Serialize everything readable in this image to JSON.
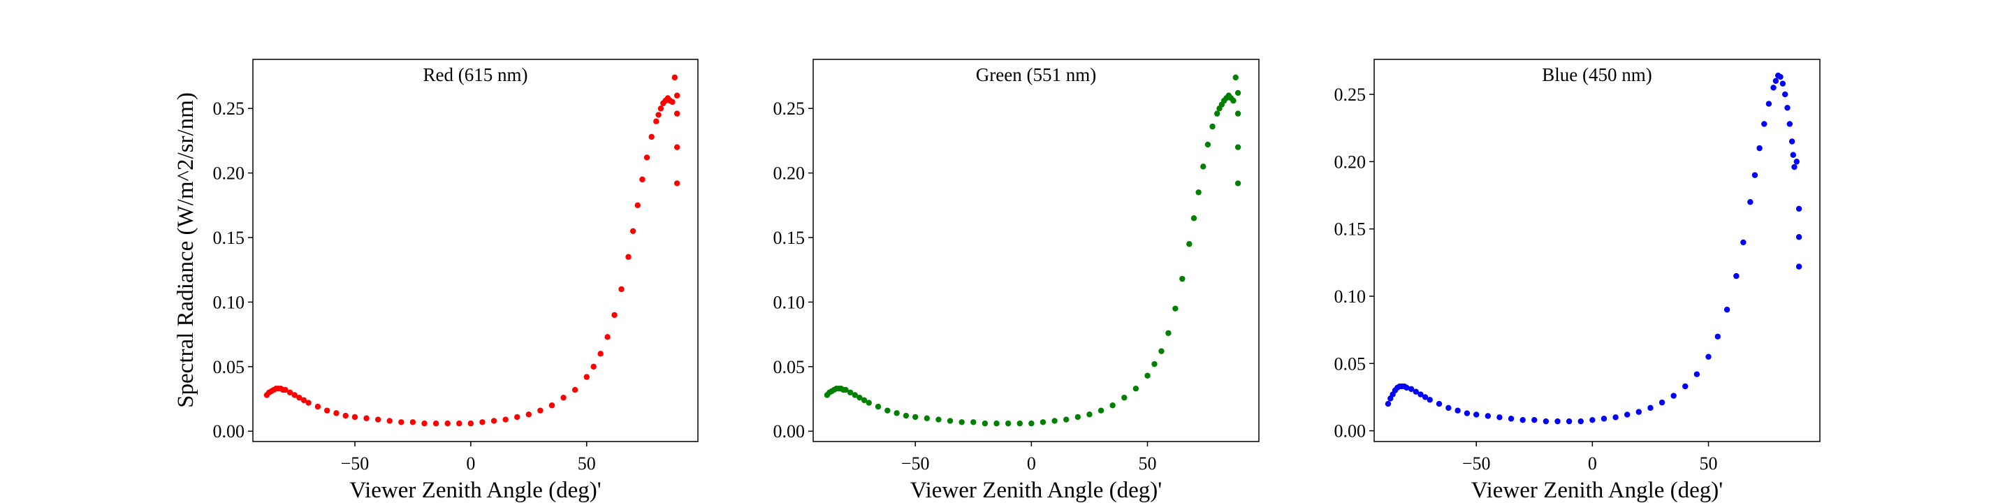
{
  "ylabel": "Spectral Radiance (W/m^2/sr/nm)",
  "chart_data": [
    {
      "type": "scatter",
      "title": "Red (615 nm)",
      "xlabel": "Viewer Zenith Angle (deg)'",
      "ylabel": "Spectral Radiance (W/m^2/sr/nm)",
      "color": "#ff0000",
      "xlim": [
        -94,
        98
      ],
      "ylim": [
        -0.008,
        0.288
      ],
      "xticks": [
        -50,
        0,
        50
      ],
      "xtick_labels": [
        "−50",
        "0",
        "50"
      ],
      "yticks": [
        0.0,
        0.05,
        0.1,
        0.15,
        0.2,
        0.25
      ],
      "ytick_labels": [
        "0.00",
        "0.05",
        "0.10",
        "0.15",
        "0.20",
        "0.25"
      ],
      "grid": false,
      "x": [
        -88,
        -87,
        -86,
        -85,
        -84,
        -83,
        -82,
        -81,
        -80,
        -78,
        -76,
        -74,
        -72,
        -70,
        -66,
        -62,
        -58,
        -54,
        -50,
        -45,
        -40,
        -35,
        -30,
        -25,
        -20,
        -15,
        -10,
        -5,
        0,
        5,
        10,
        15,
        20,
        25,
        30,
        35,
        40,
        45,
        50,
        53,
        56,
        59,
        62,
        65,
        68,
        70,
        72,
        74,
        76,
        78,
        80,
        81,
        82,
        83,
        84,
        85,
        86,
        87,
        88,
        89,
        89,
        89,
        89
      ],
      "y": [
        0.028,
        0.03,
        0.031,
        0.032,
        0.033,
        0.033,
        0.033,
        0.032,
        0.032,
        0.03,
        0.028,
        0.026,
        0.024,
        0.022,
        0.019,
        0.016,
        0.014,
        0.012,
        0.011,
        0.01,
        0.009,
        0.008,
        0.007,
        0.007,
        0.006,
        0.006,
        0.006,
        0.006,
        0.006,
        0.007,
        0.008,
        0.009,
        0.011,
        0.013,
        0.016,
        0.02,
        0.026,
        0.032,
        0.042,
        0.05,
        0.06,
        0.073,
        0.09,
        0.11,
        0.135,
        0.155,
        0.175,
        0.195,
        0.212,
        0.228,
        0.24,
        0.245,
        0.25,
        0.254,
        0.256,
        0.258,
        0.256,
        0.255,
        0.274,
        0.246,
        0.22,
        0.192,
        0.26
      ]
    },
    {
      "type": "scatter",
      "title": "Green (551 nm)",
      "xlabel": "Viewer Zenith Angle (deg)'",
      "ylabel": "",
      "color": "#008000",
      "xlim": [
        -94,
        98
      ],
      "ylim": [
        -0.008,
        0.288
      ],
      "xticks": [
        -50,
        0,
        50
      ],
      "xtick_labels": [
        "−50",
        "0",
        "50"
      ],
      "yticks": [
        0.0,
        0.05,
        0.1,
        0.15,
        0.2,
        0.25
      ],
      "ytick_labels": [
        "0.00",
        "0.05",
        "0.10",
        "0.15",
        "0.20",
        "0.25"
      ],
      "grid": false,
      "x": [
        -88,
        -87,
        -86,
        -85,
        -84,
        -83,
        -82,
        -81,
        -80,
        -78,
        -76,
        -74,
        -72,
        -70,
        -66,
        -62,
        -58,
        -54,
        -50,
        -45,
        -40,
        -35,
        -30,
        -25,
        -20,
        -15,
        -10,
        -5,
        0,
        5,
        10,
        15,
        20,
        25,
        30,
        35,
        40,
        45,
        50,
        53,
        56,
        59,
        62,
        65,
        68,
        70,
        72,
        74,
        76,
        78,
        80,
        81,
        82,
        83,
        84,
        85,
        86,
        87,
        88,
        89,
        89,
        89,
        89
      ],
      "y": [
        0.028,
        0.03,
        0.031,
        0.032,
        0.033,
        0.033,
        0.033,
        0.032,
        0.032,
        0.03,
        0.028,
        0.026,
        0.024,
        0.022,
        0.019,
        0.016,
        0.014,
        0.012,
        0.011,
        0.01,
        0.009,
        0.008,
        0.007,
        0.007,
        0.006,
        0.006,
        0.006,
        0.006,
        0.006,
        0.007,
        0.008,
        0.009,
        0.011,
        0.013,
        0.016,
        0.02,
        0.026,
        0.033,
        0.043,
        0.052,
        0.062,
        0.076,
        0.095,
        0.118,
        0.145,
        0.165,
        0.185,
        0.205,
        0.222,
        0.236,
        0.246,
        0.25,
        0.253,
        0.256,
        0.258,
        0.26,
        0.258,
        0.256,
        0.274,
        0.246,
        0.22,
        0.192,
        0.262
      ]
    },
    {
      "type": "scatter",
      "title": "Blue (450 nm)",
      "xlabel": "Viewer Zenith Angle (deg)'",
      "ylabel": "",
      "color": "#0000ff",
      "xlim": [
        -94,
        98
      ],
      "ylim": [
        -0.008,
        0.276
      ],
      "xticks": [
        -50,
        0,
        50
      ],
      "xtick_labels": [
        "−50",
        "0",
        "50"
      ],
      "yticks": [
        0.0,
        0.05,
        0.1,
        0.15,
        0.2,
        0.25
      ],
      "ytick_labels": [
        "0.00",
        "0.05",
        "0.10",
        "0.15",
        "0.20",
        "0.25"
      ],
      "grid": false,
      "x": [
        -88,
        -87,
        -86,
        -85,
        -84,
        -83,
        -82,
        -81,
        -80,
        -78,
        -76,
        -74,
        -72,
        -70,
        -66,
        -62,
        -58,
        -54,
        -50,
        -45,
        -40,
        -35,
        -30,
        -25,
        -20,
        -15,
        -10,
        -5,
        0,
        5,
        10,
        15,
        20,
        25,
        30,
        35,
        40,
        45,
        50,
        54,
        58,
        62,
        65,
        68,
        70,
        72,
        74,
        76,
        78,
        79,
        80,
        81,
        82,
        83,
        84,
        85,
        86,
        86.5,
        87,
        88,
        89,
        89,
        89
      ],
      "y": [
        0.02,
        0.024,
        0.027,
        0.03,
        0.032,
        0.033,
        0.033,
        0.033,
        0.032,
        0.031,
        0.029,
        0.027,
        0.025,
        0.023,
        0.02,
        0.017,
        0.015,
        0.013,
        0.012,
        0.011,
        0.01,
        0.009,
        0.008,
        0.008,
        0.007,
        0.007,
        0.007,
        0.007,
        0.008,
        0.009,
        0.01,
        0.012,
        0.014,
        0.017,
        0.021,
        0.026,
        0.033,
        0.042,
        0.055,
        0.07,
        0.09,
        0.115,
        0.14,
        0.17,
        0.19,
        0.21,
        0.228,
        0.243,
        0.255,
        0.26,
        0.264,
        0.263,
        0.258,
        0.25,
        0.24,
        0.228,
        0.215,
        0.205,
        0.196,
        0.2,
        0.165,
        0.144,
        0.122
      ]
    }
  ]
}
